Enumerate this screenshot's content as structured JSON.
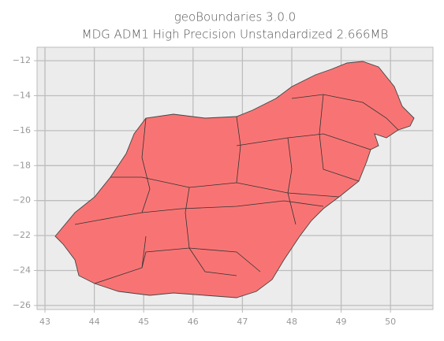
{
  "chart_data": {
    "type": "map",
    "title": "geoBoundaries 3.0.0",
    "subtitle": "MDG ADM1 High Precision Unstandardized 2.666MB",
    "xlim": [
      42.84,
      50.86
    ],
    "ylim": [
      -26.23,
      -11.23
    ],
    "xticks": [
      43,
      44,
      45,
      46,
      47,
      48,
      49,
      50
    ],
    "yticks": [
      {
        "value": -12,
        "label": "−12"
      },
      {
        "value": -14,
        "label": "−14"
      },
      {
        "value": -16,
        "label": "−16"
      },
      {
        "value": -18,
        "label": "−18"
      },
      {
        "value": -20,
        "label": "−20"
      },
      {
        "value": -22,
        "label": "−22"
      },
      {
        "value": -24,
        "label": "−24"
      },
      {
        "value": -26,
        "label": "−26"
      }
    ],
    "grid": true,
    "color": "#f87474"
  }
}
